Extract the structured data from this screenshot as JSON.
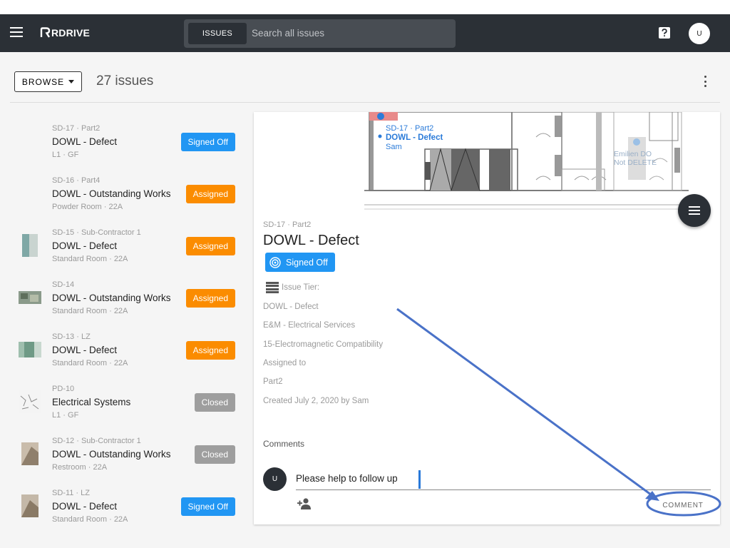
{
  "appbar": {
    "logo_text": "RDRIVE",
    "search_tab_label": "ISSUES",
    "search_placeholder": "Search all issues",
    "user_initial": "U"
  },
  "toolbar": {
    "browse_label": "BROWSE",
    "issue_count": "27 issues"
  },
  "issues": [
    {
      "meta": "SD-17 · Part2",
      "title": "DOWL - Defect",
      "location": "L1 · GF",
      "status": "Signed Off",
      "status_color": "#2196f3",
      "has_thumb": false
    },
    {
      "meta": "SD-16 · Part4",
      "title": "DOWL - Outstanding Works",
      "location": "Powder Room · 22A",
      "status": "Assigned",
      "status_color": "#fb8c00",
      "has_thumb": false
    },
    {
      "meta": "SD-15 · Sub-Contractor 1",
      "title": "DOWL - Defect",
      "location": "Standard Room · 22A",
      "status": "Assigned",
      "status_color": "#fb8c00",
      "has_thumb": true
    },
    {
      "meta": "SD-14",
      "title": "DOWL - Outstanding Works",
      "location": "Standard Room · 22A",
      "status": "Assigned",
      "status_color": "#fb8c00",
      "has_thumb": true
    },
    {
      "meta": "SD-13 · LZ",
      "title": "DOWL - Defect",
      "location": "Standard Room · 22A",
      "status": "Assigned",
      "status_color": "#fb8c00",
      "has_thumb": true
    },
    {
      "meta": "PD-10",
      "title": "Electrical Systems",
      "location": "L1 · GF",
      "status": "Closed",
      "status_color": "#9e9e9e",
      "has_thumb": true
    },
    {
      "meta": "SD-12 · Sub-Contractor 1",
      "title": "DOWL - Outstanding Works",
      "location": "Restroom · 22A",
      "status": "Closed",
      "status_color": "#9e9e9e",
      "has_thumb": true
    },
    {
      "meta": "SD-11 · LZ",
      "title": "DOWL - Defect",
      "location": "Standard Room · 22A",
      "status": "Signed Off",
      "status_color": "#2196f3",
      "has_thumb": true
    }
  ],
  "plan": {
    "pin_line1": "SD-17 · Part2",
    "pin_line2": "DOWL - Defect",
    "pin_line3": "Sam",
    "room_label1": "Emilien DO",
    "room_label2": "Not DELETE"
  },
  "detail": {
    "meta": "SD-17 · Part2",
    "title": "DOWL - Defect",
    "status": "Signed Off",
    "tier_label": "Issue Tier:",
    "lines": [
      "DOWL - Defect",
      "E&M - Electrical Services",
      "15-Electromagnetic Compatibility",
      "Assigned to",
      "Part2",
      "Created July 2, 2020 by Sam"
    ],
    "comments_heading": "Comments",
    "comment_avatar": "U",
    "comment_text": "Please help to follow up",
    "comment_button": "COMMENT"
  }
}
